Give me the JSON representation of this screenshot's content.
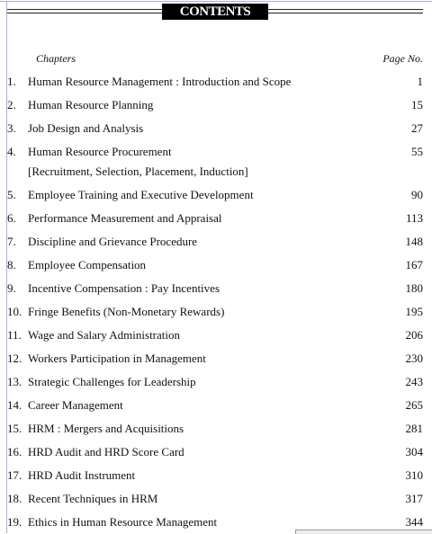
{
  "header": {
    "title": "CONTENTS"
  },
  "columns": {
    "chapters": "Chapters",
    "page": "Page No."
  },
  "entries": [
    {
      "number": "1.",
      "title": "Human Resource Management : Introduction and Scope",
      "page": 1
    },
    {
      "number": "2.",
      "title": "Human Resource Planning",
      "page": 15
    },
    {
      "number": "3.",
      "title": "Job Design and Analysis",
      "page": 27
    },
    {
      "number": "4.",
      "title": "Human Resource Procurement",
      "subtitle": "[Recruitment, Selection, Placement, Induction]",
      "page": 55
    },
    {
      "number": "5.",
      "title": "Employee Training and Executive Development",
      "page": 90
    },
    {
      "number": "6.",
      "title": "Performance Measurement and Appraisal",
      "page": 113
    },
    {
      "number": "7.",
      "title": "Discipline and Grievance Procedure",
      "page": 148
    },
    {
      "number": "8.",
      "title": "Employee Compensation",
      "page": 167
    },
    {
      "number": "9.",
      "title": "Incentive Compensation : Pay Incentives",
      "page": 180
    },
    {
      "number": "10.",
      "title": "Fringe Benefits (Non-Monetary Rewards)",
      "page": 195
    },
    {
      "number": "11.",
      "title": "Wage and Salary Administration",
      "page": 206
    },
    {
      "number": "12.",
      "title": "Workers Participation in Management",
      "page": 230
    },
    {
      "number": "13.",
      "title": "Strategic Challenges for Leadership",
      "page": 243
    },
    {
      "number": "14.",
      "title": "Career Management",
      "page": 265
    },
    {
      "number": "15.",
      "title": "HRM : Mergers and Acquisitions",
      "page": 281
    },
    {
      "number": "16.",
      "title": "HRD Audit and HRD Score Card",
      "page": 304
    },
    {
      "number": "17.",
      "title": "HRD Audit Instrument",
      "page": 310
    },
    {
      "number": "18.",
      "title": "Recent Techniques in HRM",
      "page": 317
    },
    {
      "number": "19.",
      "title": "Ethics in Human Resource Management",
      "page": 344
    }
  ]
}
